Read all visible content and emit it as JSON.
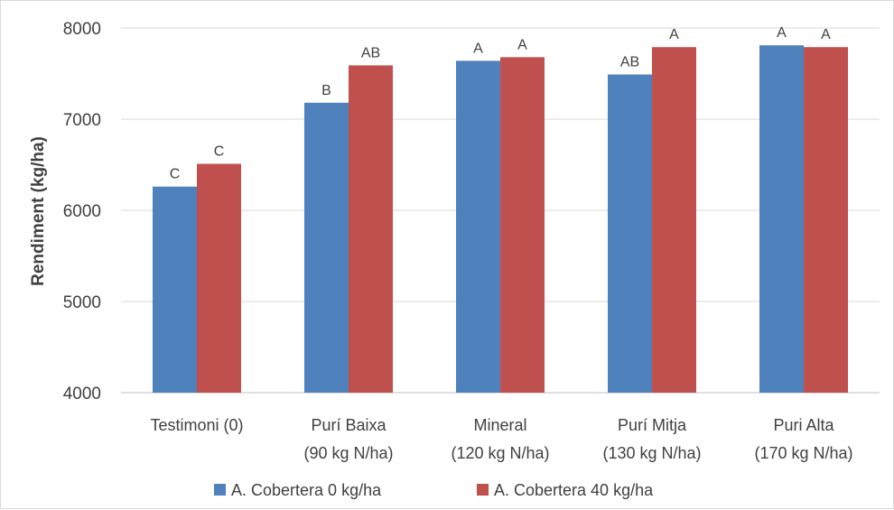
{
  "chart_data": {
    "type": "bar",
    "categories": [
      [
        "Testimoni (0)"
      ],
      [
        "Purí Baixa",
        "(90 kg N/ha)"
      ],
      [
        "Mineral",
        "(120 kg N/ha)"
      ],
      [
        "Purí Mitja",
        "(130 kg N/ha)"
      ],
      [
        "Puri Alta",
        "(170 kg N/ha)"
      ]
    ],
    "series": [
      {
        "name": "A. Cobertera 0 kg/ha",
        "color": "#4f81bd",
        "values": [
          6260,
          7180,
          7640,
          7490,
          7810
        ],
        "labels": [
          "C",
          "B",
          "A",
          "AB",
          "A"
        ]
      },
      {
        "name": "A. Cobertera 40 kg/ha",
        "color": "#c0504d",
        "values": [
          6510,
          7590,
          7680,
          7790,
          7790
        ],
        "labels": [
          "C",
          "AB",
          "A",
          "A",
          "A"
        ]
      }
    ],
    "ylabel": "Rendiment (kg/ha)",
    "ylim": [
      4000,
      8000
    ],
    "yticks": [
      4000,
      5000,
      6000,
      7000,
      8000
    ],
    "grid": true,
    "legend_position": "bottom"
  }
}
